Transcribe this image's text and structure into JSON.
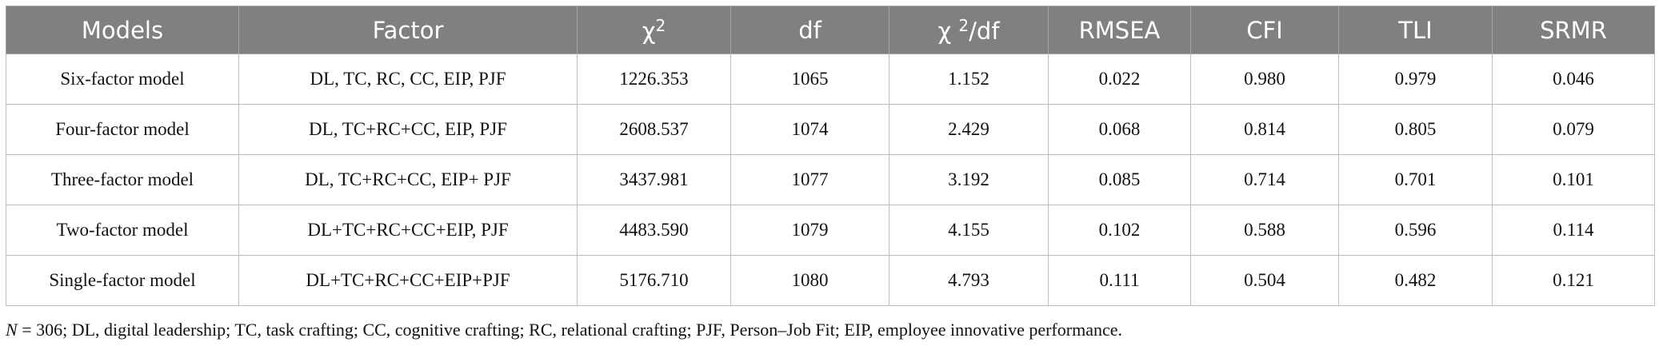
{
  "table": {
    "header": [
      "Models",
      "Factor",
      {
        "text": "χ",
        "sup": "2"
      },
      "df",
      {
        "text": "χ ",
        "sup": "2",
        "after": "/df"
      },
      "RMSEA",
      "CFI",
      "TLI",
      "SRMR"
    ],
    "rows": [
      [
        "Six-factor model",
        "DL, TC, RC, CC, EIP, PJF",
        "1226.353",
        "1065",
        "1.152",
        "0.022",
        "0.980",
        "0.979",
        "0.046"
      ],
      [
        "Four-factor model",
        "DL, TC+RC+CC, EIP, PJF",
        "2608.537",
        "1074",
        "2.429",
        "0.068",
        "0.814",
        "0.805",
        "0.079"
      ],
      [
        "Three-factor model",
        "DL, TC+RC+CC, EIP+ PJF",
        "3437.981",
        "1077",
        "3.192",
        "0.085",
        "0.714",
        "0.701",
        "0.101"
      ],
      [
        "Two-factor model",
        "DL+TC+RC+CC+EIP, PJF",
        "4483.590",
        "1079",
        "4.155",
        "0.102",
        "0.588",
        "0.596",
        "0.114"
      ],
      [
        "Single-factor model",
        "DL+TC+RC+CC+EIP+PJF",
        "5176.710",
        "1080",
        "4.793",
        "0.111",
        "0.504",
        "0.482",
        "0.121"
      ]
    ]
  },
  "footnote": {
    "n_label": "N",
    "text": " = 306; DL, digital leadership; TC, task crafting; CC, cognitive crafting; RC, relational crafting; PJF, Person–Job Fit; EIP, employee innovative performance."
  }
}
